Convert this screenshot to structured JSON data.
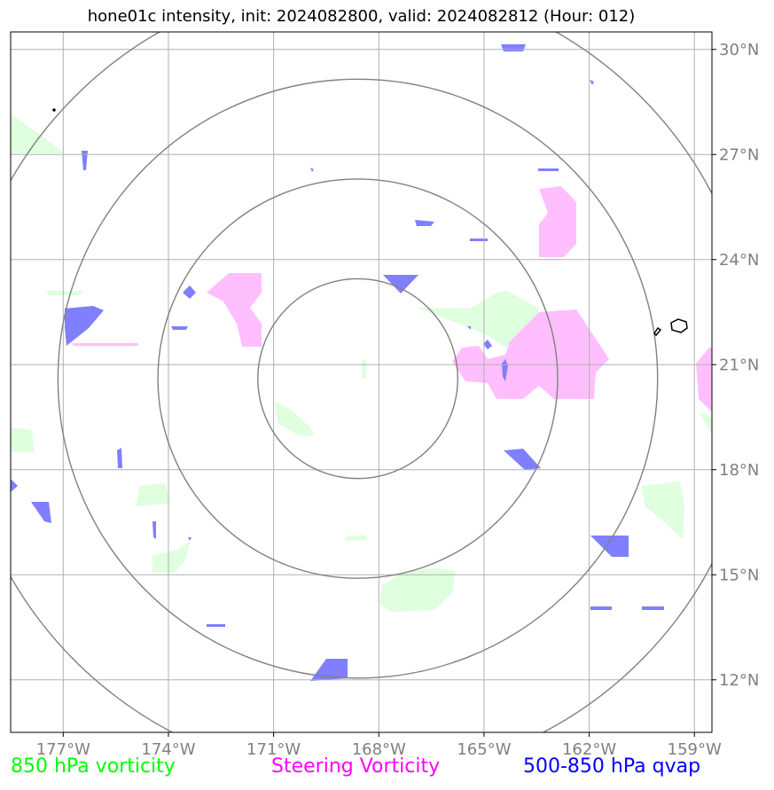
{
  "title": "hone01c intensity, init: 2024082800, valid: 2024082812 (Hour: 012)",
  "map": {
    "lon_range": [
      -178.5,
      -158.5
    ],
    "lat_range": [
      10.5,
      30.5
    ],
    "lon_ticks": [
      {
        "value": -177,
        "label": "177°W"
      },
      {
        "value": -174,
        "label": "174°W"
      },
      {
        "value": -171,
        "label": "171°W"
      },
      {
        "value": -168,
        "label": "168°W"
      },
      {
        "value": -165,
        "label": "165°W"
      },
      {
        "value": -162,
        "label": "162°W"
      },
      {
        "value": -159,
        "label": "159°W"
      }
    ],
    "lat_ticks": [
      {
        "value": 30,
        "label": "30°N"
      },
      {
        "value": 27,
        "label": "27°N"
      },
      {
        "value": 24,
        "label": "24°N"
      },
      {
        "value": 21,
        "label": "21°N"
      },
      {
        "value": 18,
        "label": "18°N"
      },
      {
        "value": 15,
        "label": "15°N"
      },
      {
        "value": 12,
        "label": "12°N"
      }
    ],
    "gridlines": true,
    "storm_center": {
      "lon": -168.6,
      "lat": 20.6
    },
    "range_rings_deg": [
      2.85,
      5.7,
      8.55,
      11.4
    ],
    "colors": {
      "gridline": "#b0b0b0",
      "ring": "#808080",
      "vorticity_850": "#dfffdf",
      "steering_vorticity": "#ffbfff",
      "qvap_500_850": "#7f7fff",
      "coastline": "#000000"
    }
  },
  "legend": {
    "vorticity_850": {
      "label": "850 hPa vorticity",
      "color": "#00ff00"
    },
    "steering_vorticity": {
      "label": "Steering Vorticity",
      "color": "#ff00ff"
    },
    "qvap": {
      "label": "500-850 hPa qvap",
      "color": "#0000ff"
    }
  }
}
